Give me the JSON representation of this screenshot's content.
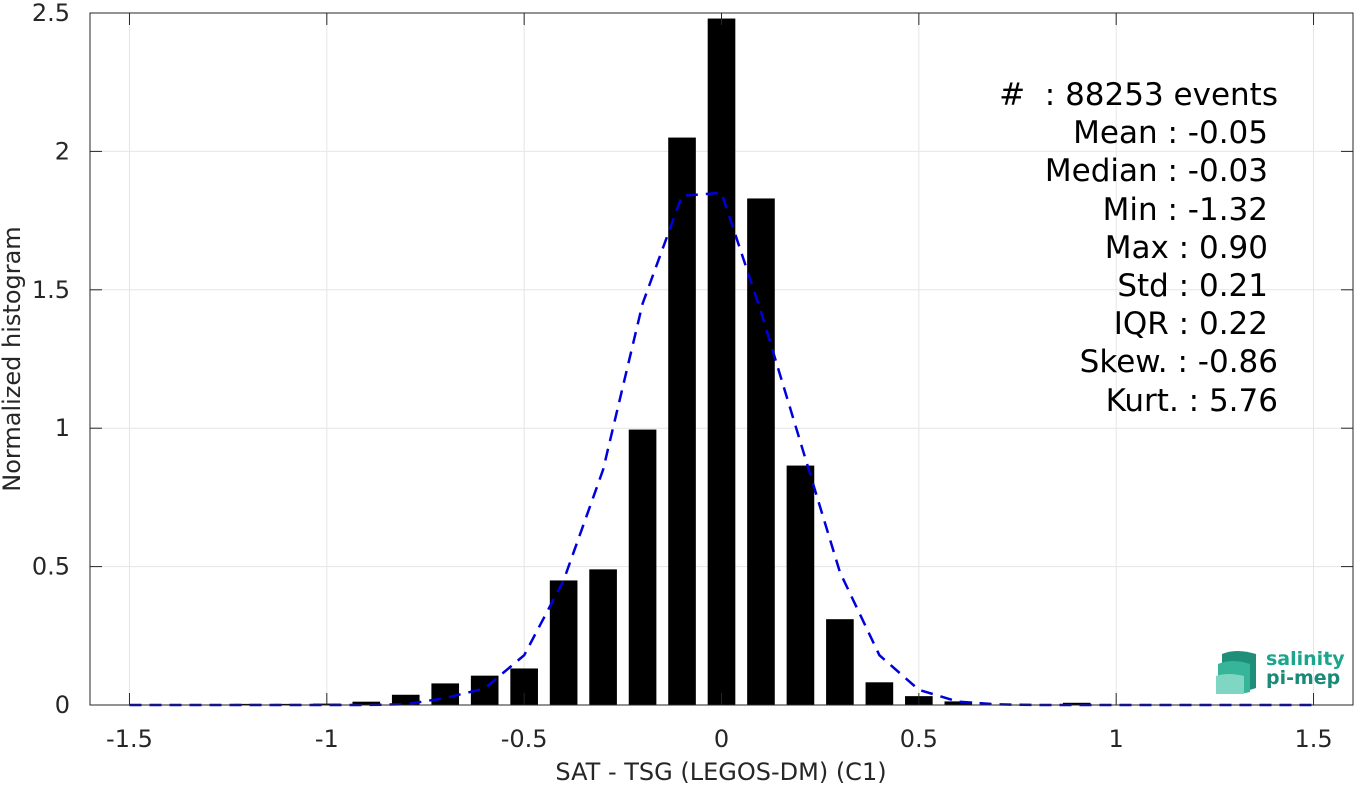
{
  "chart_data": {
    "type": "bar",
    "xlabel": "SAT - TSG (LEGOS-DM) (C1)",
    "ylabel": "Normalized histogram",
    "xlim": [
      -1.6,
      1.6
    ],
    "ylim": [
      0,
      2.5
    ],
    "xticks": [
      -1.5,
      -1,
      -0.5,
      0,
      0.5,
      1,
      1.5
    ],
    "xtick_labels": [
      "-1.5",
      "-1",
      "-0.5",
      "0",
      "0.5",
      "1",
      "1.5"
    ],
    "yticks": [
      0,
      0.5,
      1,
      1.5,
      2,
      2.5
    ],
    "ytick_labels": [
      "0",
      "0.5",
      "1",
      "1.5",
      "2",
      "2.5"
    ],
    "grid": true,
    "bar_width": 0.07,
    "bars": [
      {
        "x": -1.2,
        "y": 0.004
      },
      {
        "x": -1.1,
        "y": 0.004
      },
      {
        "x": -1.0,
        "y": 0.005
      },
      {
        "x": -0.9,
        "y": 0.012
      },
      {
        "x": -0.8,
        "y": 0.037
      },
      {
        "x": -0.7,
        "y": 0.078
      },
      {
        "x": -0.6,
        "y": 0.106
      },
      {
        "x": -0.5,
        "y": 0.132
      },
      {
        "x": -0.4,
        "y": 0.45
      },
      {
        "x": -0.3,
        "y": 0.49
      },
      {
        "x": -0.2,
        "y": 0.995
      },
      {
        "x": -0.1,
        "y": 2.05
      },
      {
        "x": 0.0,
        "y": 2.48
      },
      {
        "x": 0.1,
        "y": 1.83
      },
      {
        "x": 0.2,
        "y": 0.865
      },
      {
        "x": 0.3,
        "y": 0.31
      },
      {
        "x": 0.4,
        "y": 0.082
      },
      {
        "x": 0.5,
        "y": 0.032
      },
      {
        "x": 0.6,
        "y": 0.013
      },
      {
        "x": 0.9,
        "y": 0.008
      }
    ],
    "fit_curve": {
      "style": "dashed",
      "x": [
        -1.5,
        -1.4,
        -1.3,
        -1.2,
        -1.1,
        -1.0,
        -0.9,
        -0.8,
        -0.7,
        -0.6,
        -0.5,
        -0.4,
        -0.3,
        -0.2,
        -0.1,
        0.0,
        0.1,
        0.2,
        0.3,
        0.4,
        0.5,
        0.6,
        0.7,
        0.8,
        0.9,
        1.0,
        1.1,
        1.2,
        1.3,
        1.4,
        1.5
      ],
      "y": [
        0,
        0,
        0,
        0,
        0,
        0,
        0,
        0.003,
        0.025,
        0.06,
        0.18,
        0.45,
        0.85,
        1.45,
        1.84,
        1.85,
        1.42,
        0.95,
        0.48,
        0.18,
        0.055,
        0.012,
        0.002,
        0,
        0,
        0,
        0,
        0,
        0,
        0,
        0
      ]
    }
  },
  "stats": [
    "#  : 88253 events",
    "Mean : -0.05",
    "Median : -0.03",
    "Min : -1.32",
    "Max : 0.90",
    "Std : 0.21",
    "IQR : 0.22",
    "Skew. : -0.86",
    "Kurt. : 5.76"
  ],
  "logo": {
    "line1": "salinity",
    "line2": "pi-mep"
  },
  "colors": {
    "bars": "#000000",
    "fit_curve": "#0000dd",
    "grid": "#e6e6e6",
    "axis": "#262626",
    "logo": "#1aa58c"
  }
}
